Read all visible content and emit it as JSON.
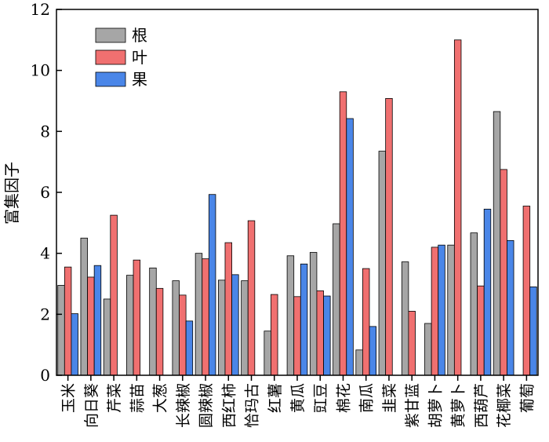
{
  "chart_data": {
    "type": "bar",
    "ylabel": "富集因子",
    "xlabel": "",
    "ylim": [
      0,
      12
    ],
    "yticks": [
      0,
      2,
      4,
      6,
      8,
      10,
      12
    ],
    "grid": false,
    "legend_position": "top-left",
    "categories": [
      "玉米",
      "向日葵",
      "芹菜",
      "蒜苗",
      "大葱",
      "长辣椒",
      "圆辣椒",
      "西红柿",
      "恰玛古",
      "红薯",
      "黄瓜",
      "豇豆",
      "棉花",
      "南瓜",
      "韭菜",
      "紫甘蓝",
      "胡萝卜",
      "黄萝卜",
      "西葫芦",
      "花椰菜",
      "葡萄"
    ],
    "series": [
      {
        "name": "根",
        "color": "#a6a6a6",
        "values": [
          2.95,
          4.5,
          2.5,
          3.28,
          3.52,
          3.1,
          4.0,
          3.12,
          3.1,
          1.45,
          3.92,
          4.03,
          4.97,
          0.83,
          7.35,
          3.72,
          1.7,
          4.27,
          4.67,
          8.65,
          null
        ]
      },
      {
        "name": "叶",
        "color": "#f07070",
        "values": [
          3.55,
          3.22,
          5.25,
          3.78,
          2.85,
          2.63,
          3.82,
          4.35,
          5.07,
          2.65,
          2.58,
          2.77,
          9.3,
          3.5,
          9.08,
          2.1,
          4.2,
          11.0,
          2.93,
          6.75,
          5.55
        ]
      },
      {
        "name": "果",
        "color": "#4a86e8",
        "values": [
          2.02,
          3.6,
          null,
          null,
          null,
          1.78,
          5.93,
          3.3,
          null,
          null,
          3.65,
          2.6,
          8.42,
          1.6,
          null,
          null,
          4.27,
          null,
          5.45,
          4.42,
          2.9
        ]
      }
    ]
  }
}
